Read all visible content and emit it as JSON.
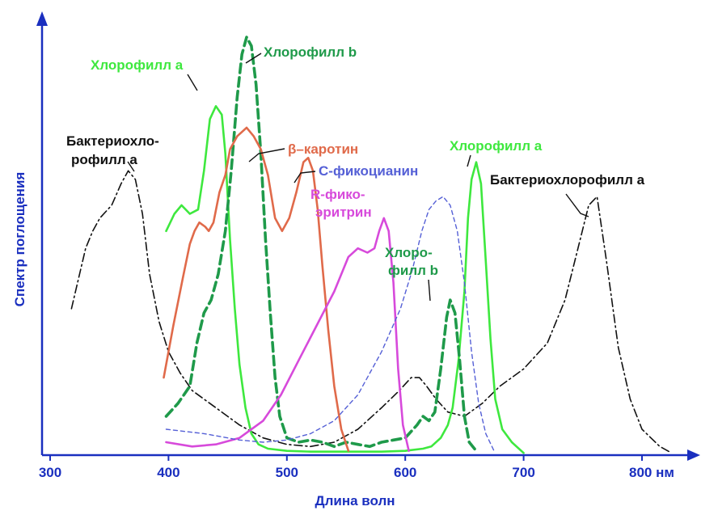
{
  "chart_data": {
    "type": "line",
    "xlabel": "Длина волн",
    "ylabel": "Спектр поглощения",
    "x_unit": "нм",
    "xlim": [
      300,
      820
    ],
    "ylim": [
      0,
      1
    ],
    "x_ticks": [
      300,
      400,
      500,
      600,
      700,
      800
    ],
    "x_tick_labels": [
      "300",
      "400",
      "500",
      "600",
      "700",
      "800 нм"
    ],
    "grid": false,
    "series": [
      {
        "name": "Бактериохлорофилл а",
        "color": "#111111",
        "style": "dashdot",
        "points": [
          [
            318,
            0.34
          ],
          [
            330,
            0.48
          ],
          [
            336,
            0.52
          ],
          [
            342,
            0.55
          ],
          [
            352,
            0.58
          ],
          [
            360,
            0.63
          ],
          [
            366,
            0.66
          ],
          [
            372,
            0.64
          ],
          [
            378,
            0.56
          ],
          [
            384,
            0.42
          ],
          [
            392,
            0.31
          ],
          [
            400,
            0.24
          ],
          [
            410,
            0.19
          ],
          [
            420,
            0.15
          ],
          [
            440,
            0.11
          ],
          [
            460,
            0.07
          ],
          [
            480,
            0.04
          ],
          [
            500,
            0.025
          ],
          [
            520,
            0.02
          ],
          [
            540,
            0.03
          ],
          [
            560,
            0.06
          ],
          [
            580,
            0.11
          ],
          [
            595,
            0.15
          ],
          [
            605,
            0.18
          ],
          [
            612,
            0.18
          ],
          [
            618,
            0.16
          ],
          [
            626,
            0.13
          ],
          [
            636,
            0.1
          ],
          [
            650,
            0.09
          ],
          [
            665,
            0.12
          ],
          [
            680,
            0.16
          ],
          [
            700,
            0.2
          ],
          [
            720,
            0.26
          ],
          [
            735,
            0.36
          ],
          [
            745,
            0.47
          ],
          [
            755,
            0.58
          ],
          [
            762,
            0.6
          ],
          [
            770,
            0.45
          ],
          [
            780,
            0.25
          ],
          [
            790,
            0.13
          ],
          [
            800,
            0.06
          ],
          [
            815,
            0.02
          ],
          [
            825,
            0.005
          ]
        ]
      },
      {
        "name": "Хлорофилл а",
        "color": "#3ee83e",
        "style": "solid",
        "points": [
          [
            398,
            0.52
          ],
          [
            405,
            0.56
          ],
          [
            411,
            0.58
          ],
          [
            418,
            0.56
          ],
          [
            425,
            0.57
          ],
          [
            430,
            0.66
          ],
          [
            435,
            0.78
          ],
          [
            440,
            0.81
          ],
          [
            445,
            0.79
          ],
          [
            448,
            0.7
          ],
          [
            452,
            0.5
          ],
          [
            456,
            0.34
          ],
          [
            460,
            0.21
          ],
          [
            465,
            0.11
          ],
          [
            470,
            0.05
          ],
          [
            476,
            0.025
          ],
          [
            484,
            0.015
          ],
          [
            500,
            0.01
          ],
          [
            520,
            0.008
          ],
          [
            540,
            0.008
          ],
          [
            560,
            0.008
          ],
          [
            580,
            0.008
          ],
          [
            600,
            0.01
          ],
          [
            615,
            0.015
          ],
          [
            622,
            0.02
          ],
          [
            630,
            0.04
          ],
          [
            636,
            0.07
          ],
          [
            640,
            0.11
          ],
          [
            645,
            0.22
          ],
          [
            650,
            0.38
          ],
          [
            653,
            0.55
          ],
          [
            656,
            0.64
          ],
          [
            660,
            0.68
          ],
          [
            664,
            0.63
          ],
          [
            668,
            0.45
          ],
          [
            672,
            0.27
          ],
          [
            676,
            0.13
          ],
          [
            682,
            0.06
          ],
          [
            690,
            0.03
          ],
          [
            700,
            0.005
          ]
        ]
      },
      {
        "name": "Хлорофилл b",
        "color": "#1f9a4a",
        "style": "dashed",
        "points": [
          [
            398,
            0.09
          ],
          [
            408,
            0.12
          ],
          [
            418,
            0.16
          ],
          [
            424,
            0.26
          ],
          [
            430,
            0.33
          ],
          [
            436,
            0.36
          ],
          [
            442,
            0.42
          ],
          [
            448,
            0.52
          ],
          [
            453,
            0.66
          ],
          [
            458,
            0.83
          ],
          [
            462,
            0.93
          ],
          [
            466,
            0.97
          ],
          [
            470,
            0.95
          ],
          [
            474,
            0.86
          ],
          [
            478,
            0.7
          ],
          [
            482,
            0.5
          ],
          [
            486,
            0.33
          ],
          [
            490,
            0.18
          ],
          [
            494,
            0.09
          ],
          [
            500,
            0.04
          ],
          [
            510,
            0.03
          ],
          [
            520,
            0.035
          ],
          [
            530,
            0.03
          ],
          [
            540,
            0.02
          ],
          [
            550,
            0.03
          ],
          [
            560,
            0.025
          ],
          [
            570,
            0.02
          ],
          [
            580,
            0.03
          ],
          [
            590,
            0.035
          ],
          [
            600,
            0.04
          ],
          [
            610,
            0.07
          ],
          [
            615,
            0.09
          ],
          [
            620,
            0.08
          ],
          [
            625,
            0.1
          ],
          [
            630,
            0.2
          ],
          [
            635,
            0.32
          ],
          [
            638,
            0.36
          ],
          [
            642,
            0.33
          ],
          [
            646,
            0.22
          ],
          [
            650,
            0.09
          ],
          [
            654,
            0.03
          ],
          [
            660,
            0.01
          ]
        ]
      },
      {
        "name": "β–каротин",
        "color": "#e06a4a",
        "style": "solid",
        "points": [
          [
            396,
            0.18
          ],
          [
            404,
            0.3
          ],
          [
            412,
            0.41
          ],
          [
            418,
            0.49
          ],
          [
            422,
            0.52
          ],
          [
            426,
            0.54
          ],
          [
            431,
            0.53
          ],
          [
            434,
            0.52
          ],
          [
            438,
            0.54
          ],
          [
            443,
            0.61
          ],
          [
            448,
            0.65
          ],
          [
            452,
            0.71
          ],
          [
            458,
            0.74
          ],
          [
            466,
            0.76
          ],
          [
            472,
            0.74
          ],
          [
            478,
            0.71
          ],
          [
            484,
            0.65
          ],
          [
            490,
            0.55
          ],
          [
            496,
            0.52
          ],
          [
            502,
            0.55
          ],
          [
            508,
            0.61
          ],
          [
            514,
            0.68
          ],
          [
            518,
            0.69
          ],
          [
            522,
            0.66
          ],
          [
            526,
            0.57
          ],
          [
            530,
            0.44
          ],
          [
            535,
            0.29
          ],
          [
            540,
            0.16
          ],
          [
            546,
            0.06
          ],
          [
            552,
            0.01
          ]
        ]
      },
      {
        "name": "R-фико-эритрин",
        "color": "#d74adb",
        "style": "solid",
        "points": [
          [
            398,
            0.03
          ],
          [
            420,
            0.02
          ],
          [
            440,
            0.025
          ],
          [
            460,
            0.04
          ],
          [
            480,
            0.08
          ],
          [
            495,
            0.14
          ],
          [
            510,
            0.22
          ],
          [
            525,
            0.3
          ],
          [
            540,
            0.38
          ],
          [
            552,
            0.46
          ],
          [
            560,
            0.48
          ],
          [
            568,
            0.47
          ],
          [
            574,
            0.48
          ],
          [
            578,
            0.52
          ],
          [
            582,
            0.55
          ],
          [
            586,
            0.52
          ],
          [
            590,
            0.4
          ],
          [
            594,
            0.2
          ],
          [
            598,
            0.07
          ],
          [
            603,
            0.01
          ]
        ]
      },
      {
        "name": "С-фикоцианин",
        "color": "#5560d6",
        "style": "dashed",
        "points": [
          [
            398,
            0.06
          ],
          [
            430,
            0.05
          ],
          [
            460,
            0.035
          ],
          [
            480,
            0.03
          ],
          [
            500,
            0.035
          ],
          [
            520,
            0.05
          ],
          [
            540,
            0.08
          ],
          [
            560,
            0.14
          ],
          [
            580,
            0.24
          ],
          [
            596,
            0.34
          ],
          [
            606,
            0.43
          ],
          [
            614,
            0.52
          ],
          [
            620,
            0.57
          ],
          [
            626,
            0.59
          ],
          [
            632,
            0.6
          ],
          [
            638,
            0.58
          ],
          [
            644,
            0.52
          ],
          [
            650,
            0.4
          ],
          [
            656,
            0.24
          ],
          [
            662,
            0.12
          ],
          [
            668,
            0.05
          ],
          [
            675,
            0.01
          ]
        ]
      }
    ],
    "annotations": [
      {
        "text": "Хлорофилл а",
        "color": "#3ee83e",
        "series": "Хлорофилл а"
      },
      {
        "text": "Хлорофилл b",
        "color": "#1f9a4a",
        "series": "Хлорофилл b"
      },
      {
        "text": "Бактериохло-",
        "color": "#111111",
        "series": "Бактериохлорофилл а"
      },
      {
        "text": "рофилл а",
        "color": "#111111",
        "series": "Бактериохлорофилл а"
      },
      {
        "text": "β–каротин",
        "color": "#e06a4a",
        "series": "β–каротин"
      },
      {
        "text": "С-фикоцианин",
        "color": "#5560d6",
        "series": "С-фикоцианин"
      },
      {
        "text": "R-фико-",
        "color": "#d74adb",
        "series": "R-фико-эритрин"
      },
      {
        "text": "эритрин",
        "color": "#d74adb",
        "series": "R-фико-эритрин"
      },
      {
        "text": "Хлорофилл а",
        "color": "#3ee83e",
        "series": "Хлорофилл а"
      },
      {
        "text": "Хлоро-",
        "color": "#1f9a4a",
        "series": "Хлорофилл b"
      },
      {
        "text": "филл b",
        "color": "#1f9a4a",
        "series": "Хлорофилл b"
      },
      {
        "text": "Бактериохлорофилл а",
        "color": "#111111",
        "series": "Бактериохлорофилл а"
      }
    ],
    "axis_color": "#1a2fbf"
  }
}
